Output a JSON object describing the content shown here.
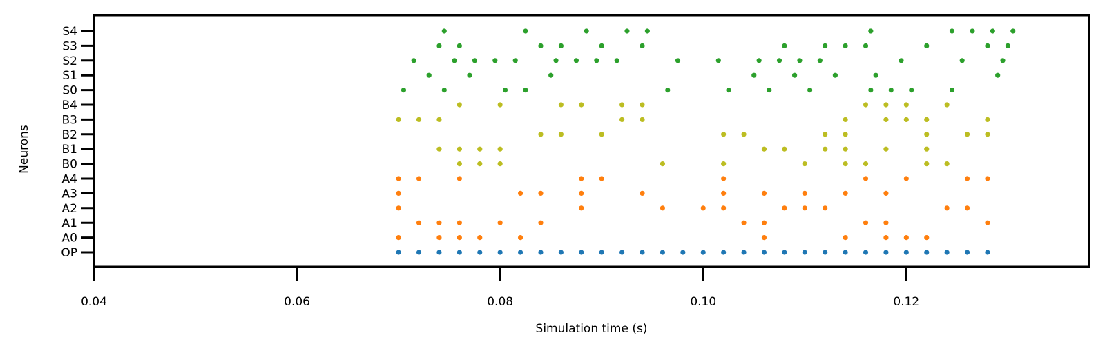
{
  "chart_data": {
    "type": "scatter",
    "title": "",
    "xlabel": "Simulation time (s)",
    "ylabel": "Neurons",
    "xlim": [
      0.04,
      0.138
    ],
    "x_ticks": [
      0.04,
      0.06,
      0.08,
      0.1,
      0.12
    ],
    "x_tick_labels": [
      "0.04",
      "0.06",
      "0.08",
      "0.10",
      "0.12"
    ],
    "categories": [
      "OP",
      "A0",
      "A1",
      "A2",
      "A3",
      "A4",
      "B0",
      "B1",
      "B2",
      "B3",
      "B4",
      "S0",
      "S1",
      "S2",
      "S3",
      "S4"
    ],
    "grid": false,
    "colors": {
      "OP": "#1f77b4",
      "A": "#ff7f0e",
      "B": "#bcbd22",
      "S": "#2ca02c"
    },
    "series": [
      {
        "neuron": "OP",
        "group": "OP",
        "x": [
          0.07,
          0.072,
          0.074,
          0.076,
          0.078,
          0.08,
          0.082,
          0.084,
          0.086,
          0.088,
          0.09,
          0.092,
          0.094,
          0.096,
          0.098,
          0.1,
          0.102,
          0.104,
          0.106,
          0.108,
          0.11,
          0.112,
          0.114,
          0.116,
          0.118,
          0.12,
          0.122,
          0.124,
          0.126,
          0.128
        ]
      },
      {
        "neuron": "A0",
        "group": "A",
        "x": [
          0.07,
          0.074,
          0.076,
          0.078,
          0.082,
          0.106,
          0.114,
          0.118,
          0.12,
          0.122
        ]
      },
      {
        "neuron": "A1",
        "group": "A",
        "x": [
          0.072,
          0.074,
          0.076,
          0.08,
          0.084,
          0.104,
          0.106,
          0.116,
          0.118,
          0.128
        ]
      },
      {
        "neuron": "A2",
        "group": "A",
        "x": [
          0.07,
          0.088,
          0.096,
          0.1,
          0.102,
          0.108,
          0.11,
          0.112,
          0.124,
          0.126
        ]
      },
      {
        "neuron": "A3",
        "group": "A",
        "x": [
          0.07,
          0.082,
          0.084,
          0.088,
          0.094,
          0.102,
          0.106,
          0.11,
          0.114,
          0.118
        ]
      },
      {
        "neuron": "A4",
        "group": "A",
        "x": [
          0.07,
          0.072,
          0.076,
          0.088,
          0.09,
          0.102,
          0.116,
          0.12,
          0.126,
          0.128
        ]
      },
      {
        "neuron": "B0",
        "group": "B",
        "x": [
          0.076,
          0.078,
          0.08,
          0.096,
          0.102,
          0.11,
          0.114,
          0.116,
          0.122,
          0.124
        ]
      },
      {
        "neuron": "B1",
        "group": "B",
        "x": [
          0.074,
          0.076,
          0.078,
          0.08,
          0.106,
          0.108,
          0.112,
          0.114,
          0.118,
          0.122
        ]
      },
      {
        "neuron": "B2",
        "group": "B",
        "x": [
          0.084,
          0.086,
          0.09,
          0.102,
          0.104,
          0.112,
          0.114,
          0.122,
          0.126,
          0.128
        ]
      },
      {
        "neuron": "B3",
        "group": "B",
        "x": [
          0.07,
          0.072,
          0.074,
          0.092,
          0.094,
          0.114,
          0.118,
          0.12,
          0.122,
          0.128
        ]
      },
      {
        "neuron": "B4",
        "group": "B",
        "x": [
          0.076,
          0.08,
          0.086,
          0.088,
          0.092,
          0.094,
          0.116,
          0.118,
          0.12,
          0.124
        ]
      },
      {
        "neuron": "S0",
        "group": "S",
        "x": [
          0.0705,
          0.0745,
          0.0805,
          0.0825,
          0.0965,
          0.1025,
          0.1065,
          0.1105,
          0.1165,
          0.1185,
          0.1205,
          0.1245
        ]
      },
      {
        "neuron": "S1",
        "group": "S",
        "x": [
          0.073,
          0.077,
          0.085,
          0.105,
          0.109,
          0.113,
          0.117,
          0.129
        ]
      },
      {
        "neuron": "S2",
        "group": "S",
        "x": [
          0.0715,
          0.0755,
          0.0775,
          0.0795,
          0.0815,
          0.0855,
          0.0875,
          0.0895,
          0.0915,
          0.0975,
          0.1015,
          0.1055,
          0.1075,
          0.1095,
          0.1115,
          0.1195,
          0.1255,
          0.1295
        ]
      },
      {
        "neuron": "S3",
        "group": "S",
        "x": [
          0.074,
          0.076,
          0.084,
          0.086,
          0.09,
          0.094,
          0.108,
          0.112,
          0.114,
          0.116,
          0.122,
          0.128,
          0.13
        ]
      },
      {
        "neuron": "S4",
        "group": "S",
        "x": [
          0.0745,
          0.0825,
          0.0885,
          0.0925,
          0.0945,
          0.1165,
          0.1245,
          0.1265,
          0.1285,
          0.1305
        ]
      }
    ]
  }
}
